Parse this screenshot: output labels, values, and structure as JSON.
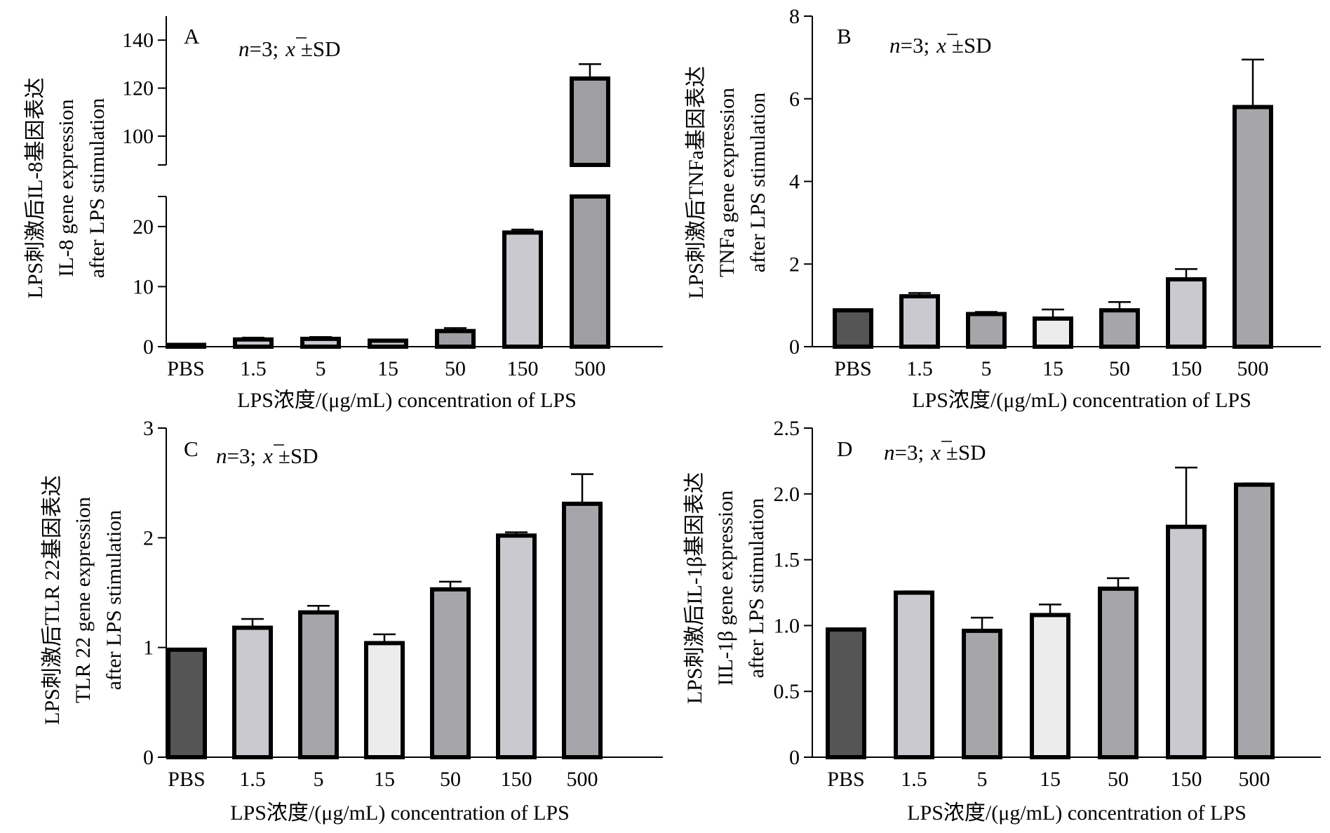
{
  "figure": {
    "panels": [
      {
        "letter": "A",
        "ytitle_lines": [
          "LPS刺激后IL-8基因表达",
          "IL-8 gene expression",
          "after LPS stimulation"
        ],
        "xlabel": "LPS浓度/(μg/mL) concentration of LPS",
        "note_italic": "n",
        "note_rest": "=3;",
        "note_stat": "±SD",
        "note_xbar": "x"
      },
      {
        "letter": "B",
        "ytitle_lines": [
          "LPS刺激后TNFa基因表达",
          "TNFa gene expression",
          "after LPS stimulation"
        ],
        "xlabel": "LPS浓度/(μg/mL) concentration of LPS",
        "note_italic": "n",
        "note_rest": "=3;",
        "note_stat": "±SD",
        "note_xbar": "x"
      },
      {
        "letter": "C",
        "ytitle_lines": [
          "LPS刺激后TLR 22基因表达",
          "TLR 22 gene expression",
          "after LPS stimulation"
        ],
        "xlabel": "LPS浓度/(μg/mL) concentration of LPS",
        "note_italic": "n",
        "note_rest": "=3;",
        "note_stat": "±SD",
        "note_xbar": "x"
      },
      {
        "letter": "D",
        "ytitle_lines": [
          "LPS刺激后IL-1β基因表达",
          "IIL-1β gene expression",
          "after LPS stimulation"
        ],
        "xlabel": "LPS浓度/(μg/mL) concentration of LPS",
        "note_italic": "n",
        "note_rest": "=3;",
        "note_stat": "±SD",
        "note_xbar": "x"
      }
    ]
  },
  "chart_data": [
    {
      "type": "bar",
      "panel": "A",
      "categories": [
        "PBS",
        "1.5",
        "5",
        "15",
        "50",
        "150",
        "500"
      ],
      "values": [
        0.3,
        1.2,
        1.3,
        1.0,
        2.6,
        19.0,
        124.0
      ],
      "errors": [
        0,
        0.3,
        0.3,
        0.2,
        0.5,
        0.5,
        6.0
      ],
      "bar_colors": [
        "#555555",
        "#c9c9cf",
        "#c9c9cf",
        "#c9c9cf",
        "#9f9fa3",
        "#c9c9cf",
        "#9f9fa3"
      ],
      "ylabel": "LPS刺激后IL-8基因表达 IL-8 gene expression after LPS stimulation",
      "xlabel": "LPS浓度/(μg/mL) concentration of LPS",
      "y_axis_break": true,
      "ylim_lower": [
        0,
        25
      ],
      "ylim_upper": [
        88,
        150
      ],
      "yticks_lower": [
        0,
        10,
        20
      ],
      "yticks_upper": [
        100,
        120,
        140
      ]
    },
    {
      "type": "bar",
      "panel": "B",
      "categories": [
        "PBS",
        "1.5",
        "5",
        "15",
        "50",
        "150",
        "500"
      ],
      "values": [
        0.88,
        1.22,
        0.79,
        0.68,
        0.88,
        1.63,
        5.8
      ],
      "errors": [
        0,
        0.08,
        0.05,
        0.22,
        0.2,
        0.25,
        1.15
      ],
      "bar_colors": [
        "#555555",
        "#c9c9cf",
        "#a6a6aa",
        "#ececec",
        "#a6a6aa",
        "#c9c9cf",
        "#a6a6aa"
      ],
      "ylabel": "LPS刺激后TNFa基因表达 TNFa gene expression after LPS stimulation",
      "xlabel": "LPS浓度/(μg/mL) concentration of LPS",
      "ylim": [
        0,
        8
      ],
      "yticks": [
        0,
        2,
        4,
        6,
        8
      ]
    },
    {
      "type": "bar",
      "panel": "C",
      "categories": [
        "PBS",
        "1.5",
        "5",
        "15",
        "50",
        "150",
        "500"
      ],
      "values": [
        0.98,
        1.18,
        1.32,
        1.04,
        1.53,
        2.02,
        2.31
      ],
      "errors": [
        0,
        0.08,
        0.06,
        0.08,
        0.07,
        0.03,
        0.27
      ],
      "bar_colors": [
        "#555555",
        "#c9c9cf",
        "#a6a6aa",
        "#ececec",
        "#a6a6aa",
        "#c9c9cf",
        "#a6a6aa"
      ],
      "ylabel": "LPS刺激后TLR 22基因表达 TLR 22 gene expression after LPS stimulation",
      "xlabel": "LPS浓度/(μg/mL) concentration of LPS",
      "ylim": [
        0,
        3
      ],
      "yticks": [
        0,
        1,
        2,
        3
      ]
    },
    {
      "type": "bar",
      "panel": "D",
      "categories": [
        "PBS",
        "1.5",
        "5",
        "15",
        "50",
        "150",
        "500"
      ],
      "values": [
        0.97,
        1.25,
        0.96,
        1.08,
        1.28,
        1.75,
        2.07
      ],
      "errors": [
        0,
        0.01,
        0.1,
        0.08,
        0.08,
        0.45,
        0.01
      ],
      "bar_colors": [
        "#555555",
        "#c9c9cf",
        "#a6a6aa",
        "#ececec",
        "#a6a6aa",
        "#c9c9cf",
        "#a6a6aa"
      ],
      "ylabel": "LPS刺激后IL-1β基因表达 IIL-1β gene expression after LPS stimulation",
      "xlabel": "LPS浓度/(μg/mL) concentration of LPS",
      "ylim": [
        0,
        2.5
      ],
      "yticks": [
        0,
        0.5,
        1.0,
        1.5,
        2.0,
        2.5
      ],
      "ytick_labels": [
        "0",
        "0.5",
        "1.0",
        "1.5",
        "2.0",
        "2.5"
      ]
    }
  ]
}
